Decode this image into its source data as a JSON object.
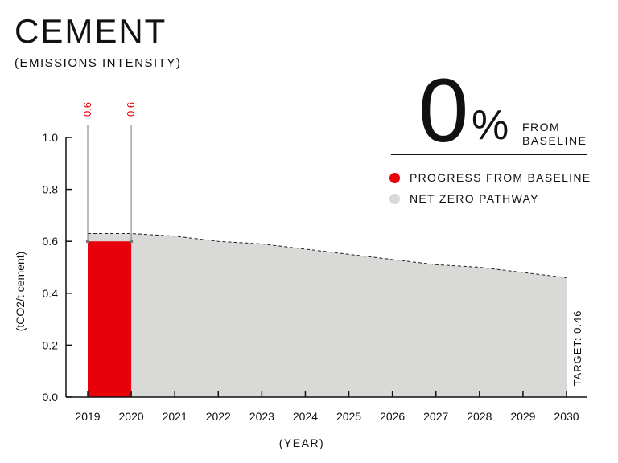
{
  "header": {
    "title": "CEMENT",
    "subtitle": "(EMISSIONS INTENSITY)"
  },
  "kpi": {
    "value": "0",
    "unit": "%",
    "label_line1": "FROM",
    "label_line2": "BASELINE"
  },
  "legend": {
    "items": [
      {
        "label": "PROGRESS FROM BASELINE",
        "color": "#e8000b"
      },
      {
        "label": "NET ZERO PATHWAY",
        "color": "#d9d9d8"
      }
    ]
  },
  "chart_data": {
    "type": "area",
    "xlabel": "(YEAR)",
    "ylabel": "(tCO2/t cement)",
    "ylim": [
      0,
      1.0
    ],
    "yticks": [
      "0.0",
      "0.2",
      "0.4",
      "0.6",
      "0.8",
      "1.0"
    ],
    "x": [
      2019,
      2020,
      2021,
      2022,
      2023,
      2024,
      2025,
      2026,
      2027,
      2028,
      2029,
      2030
    ],
    "grid": false,
    "legend_position": "top-right",
    "series": [
      {
        "name": "NET ZERO PATHWAY",
        "kind": "area",
        "color": "#d9d9d8",
        "values": [
          0.63,
          0.63,
          0.62,
          0.6,
          0.59,
          0.57,
          0.55,
          0.53,
          0.51,
          0.5,
          0.48,
          0.46
        ]
      },
      {
        "name": "PROGRESS FROM BASELINE",
        "kind": "bar",
        "color": "#e8000b",
        "x_start": 2019,
        "x_end": 2020,
        "value": 0.6
      }
    ],
    "annotations": {
      "bar_labels": [
        {
          "x": 2019,
          "text": "0.6"
        },
        {
          "x": 2020,
          "text": "0.6"
        }
      ],
      "target_label": "TARGET: 0.46"
    }
  }
}
